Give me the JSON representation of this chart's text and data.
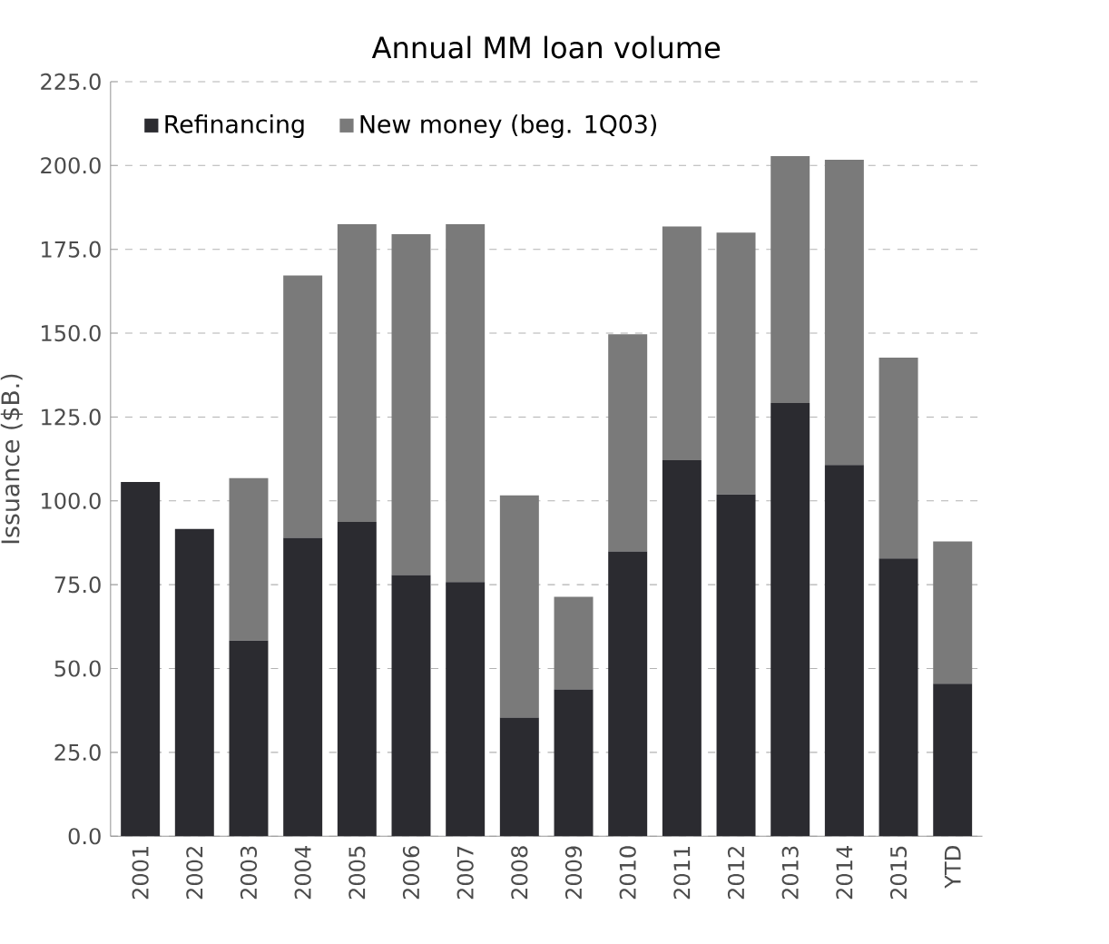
{
  "chart_data": {
    "type": "bar",
    "stacked": true,
    "title": "Annual MM loan volume",
    "ylabel": "Issuance ($B.)",
    "categories": [
      "2001",
      "2002",
      "2003",
      "2004",
      "2005",
      "2006",
      "2007",
      "2008",
      "2009",
      "2010",
      "2011",
      "2012",
      "2013",
      "2014",
      "2015",
      "YTD"
    ],
    "series": [
      {
        "name": "Refinancing",
        "color": "#2b2b30",
        "values": [
          105.6,
          91.6,
          58.3,
          89.0,
          93.7,
          77.9,
          75.8,
          35.4,
          43.8,
          84.9,
          112.1,
          101.9,
          129.2,
          110.7,
          82.8,
          45.5
        ]
      },
      {
        "name": "New money (beg. 1Q03)",
        "color": "#7a7a7a",
        "values": [
          null,
          null,
          48.5,
          78.2,
          88.8,
          101.6,
          106.7,
          66.2,
          27.6,
          64.8,
          69.7,
          78.1,
          73.6,
          91.0,
          59.9,
          42.4
        ]
      }
    ],
    "ylim": [
      0,
      225
    ],
    "yticks": [
      {
        "value": 0,
        "label": "0.0"
      },
      {
        "value": 25,
        "label": "25.0"
      },
      {
        "value": 50,
        "label": "50.0"
      },
      {
        "value": 75,
        "label": "75.0"
      },
      {
        "value": 100,
        "label": "100.0"
      },
      {
        "value": 125,
        "label": "125.0"
      },
      {
        "value": 150,
        "label": "150.0"
      },
      {
        "value": 175,
        "label": "175.0"
      },
      {
        "value": 200,
        "label": "200.0"
      },
      {
        "value": 225,
        "label": "225.0"
      }
    ],
    "grid": "y",
    "legend": "top left"
  }
}
